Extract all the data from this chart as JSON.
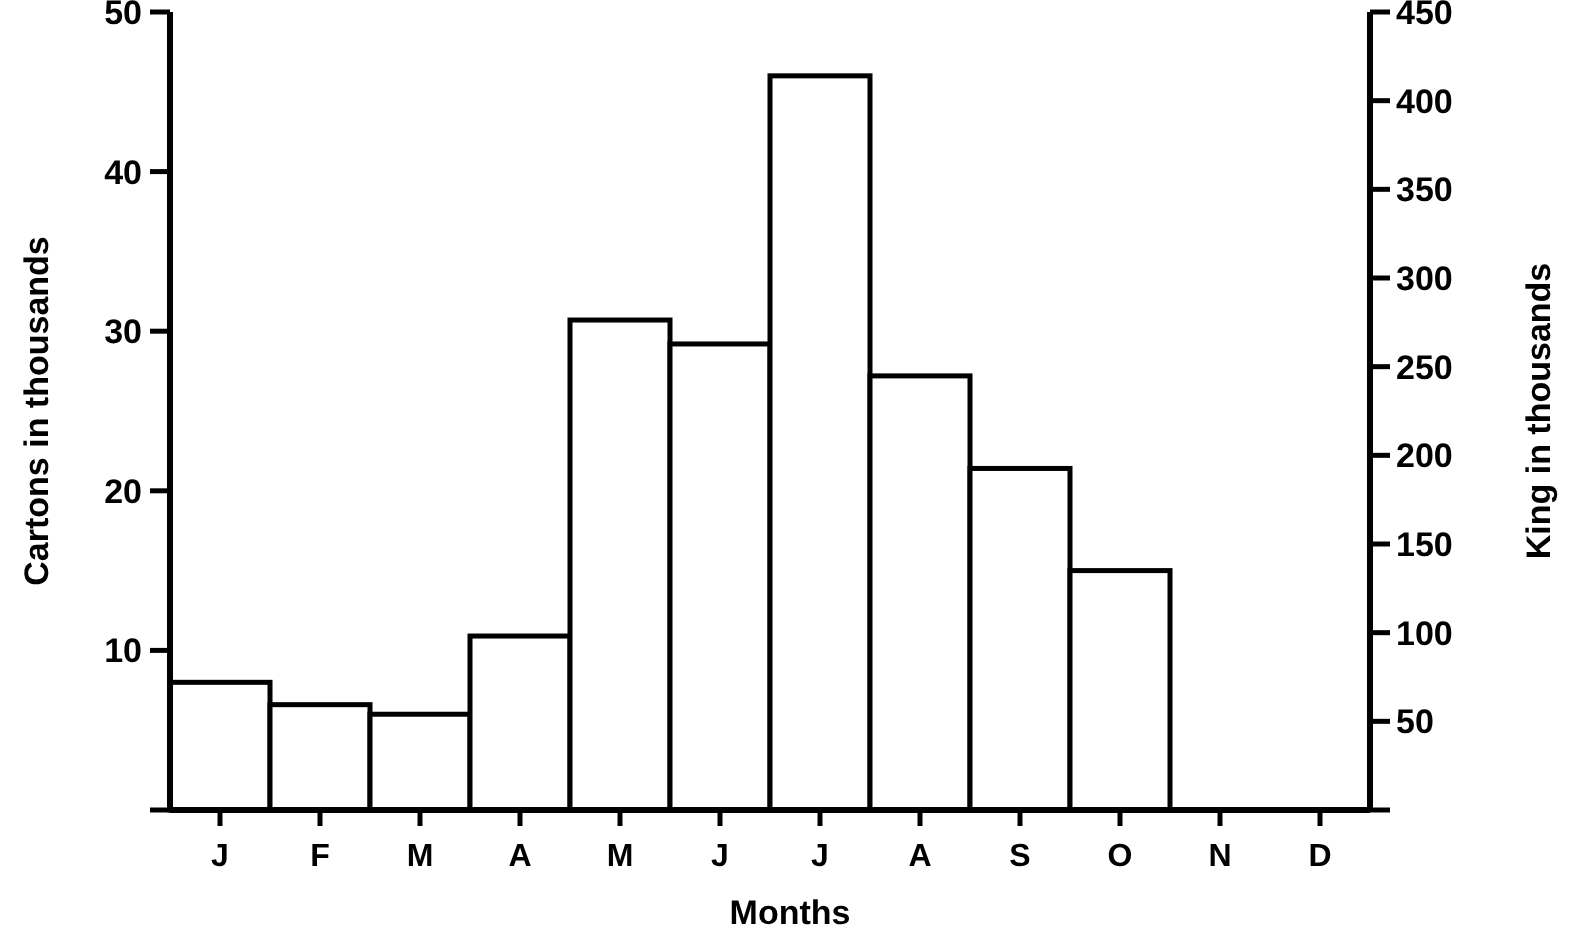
{
  "chart_data": {
    "type": "bar",
    "xlabel": "Months",
    "ylabel": "Cartons in thousands",
    "y2label": "King in thousands",
    "categories": [
      "J",
      "F",
      "M",
      "A",
      "M",
      "J",
      "J",
      "A",
      "S",
      "O",
      "N",
      "D"
    ],
    "series": [
      {
        "color": "#ffffff",
        "values": [
          8,
          6.6,
          6,
          10.9,
          30.7,
          29.2,
          46,
          27.2,
          21.4,
          15,
          0,
          0
        ]
      }
    ],
    "ylim": [
      0,
      50
    ],
    "yticks": [
      {
        "value": 0,
        "label": null
      },
      10,
      20,
      30,
      40,
      50
    ],
    "y2lim": [
      0,
      450
    ],
    "y2ticks": [
      {
        "value": 0,
        "label": null
      },
      50,
      100,
      150,
      200,
      250,
      300,
      350,
      400,
      450
    ]
  }
}
